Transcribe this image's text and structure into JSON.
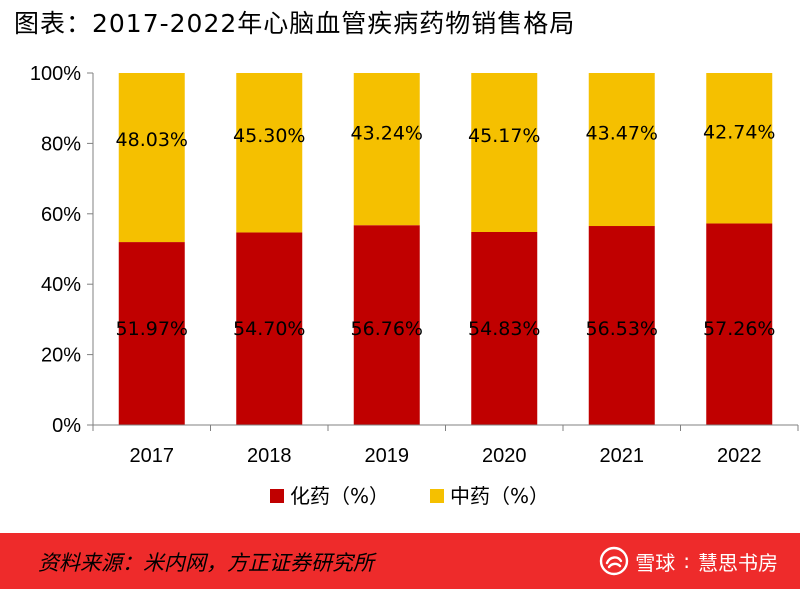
{
  "title": "图表：2017-2022年心脑血管疾病药物销售格局",
  "chart_data": {
    "type": "bar",
    "stacked": true,
    "categories": [
      "2017",
      "2018",
      "2019",
      "2020",
      "2021",
      "2022"
    ],
    "series": [
      {
        "name": "化药（%）",
        "color": "#c00000",
        "values": [
          51.97,
          54.7,
          56.76,
          54.83,
          56.53,
          57.26
        ],
        "labels": [
          "51.97%",
          "54.70%",
          "56.76%",
          "54.83%",
          "56.53%",
          "57.26%"
        ]
      },
      {
        "name": "中药（%）",
        "color": "#f5c000",
        "values": [
          48.03,
          45.3,
          43.24,
          45.17,
          43.47,
          42.74
        ],
        "labels": [
          "48.03%",
          "45.30%",
          "43.24%",
          "45.17%",
          "43.47%",
          "42.74%"
        ]
      }
    ],
    "ylim": [
      0,
      100
    ],
    "yticks": [
      "0%",
      "20%",
      "40%",
      "60%",
      "80%",
      "100%"
    ],
    "legend_position": "bottom",
    "grid": false
  },
  "footer": {
    "source": "资料来源：米内网，方正证券研究所",
    "watermark_brand": "雪球",
    "watermark_separator": ":",
    "watermark_author": "慧思书房",
    "background_color": "#ee2b2b"
  }
}
